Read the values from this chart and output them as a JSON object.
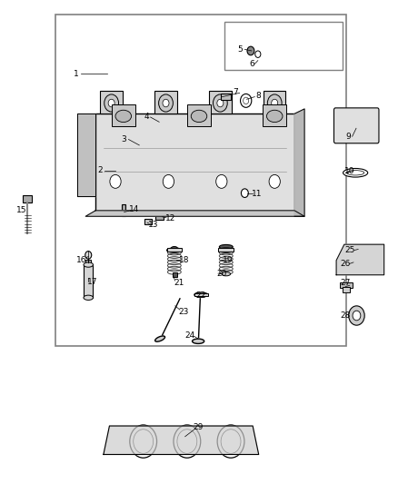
{
  "bg_color": "#ffffff",
  "border_color": "#808080",
  "text_color": "#000000",
  "fig_width": 4.38,
  "fig_height": 5.33,
  "dpi": 100
}
